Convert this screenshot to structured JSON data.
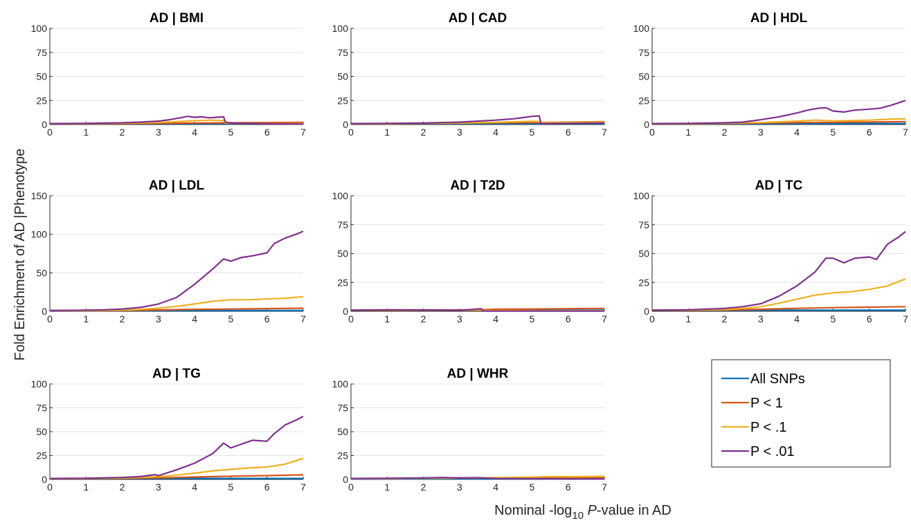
{
  "figure": {
    "ylabel": "Fold Enrichment of AD |Phenotype",
    "xlabel_prefix": "Nominal -log",
    "xlabel_sub": "10",
    "xlabel_p": "P",
    "xlabel_suffix": "-value in AD"
  },
  "legend": {
    "entries": [
      {
        "label": "All SNPs",
        "color": "#0072BD"
      },
      {
        "label": "P < 1",
        "color": "#D95319"
      },
      {
        "label": "P < .1",
        "color": "#EDB120"
      },
      {
        "label": "P < .01",
        "color": "#7E2F8E"
      }
    ]
  },
  "chart_data": [
    {
      "type": "line",
      "title": "AD | BMI",
      "xlim": [
        0,
        7
      ],
      "ylim": [
        0,
        100
      ],
      "xticks": [
        0,
        1,
        2,
        3,
        4,
        5,
        6,
        7
      ],
      "yticks": [
        0,
        25,
        50,
        75,
        100
      ],
      "grid": "horizontal",
      "series": [
        {
          "name": "All SNPs",
          "x": [
            0,
            7
          ],
          "y": [
            1,
            1
          ]
        },
        {
          "name": "P < 1",
          "x": [
            0,
            1,
            2,
            3,
            4,
            5,
            6,
            7
          ],
          "y": [
            1,
            1,
            1,
            1.3,
            1.6,
            1.8,
            2,
            2.2
          ]
        },
        {
          "name": "P < .1",
          "x": [
            0,
            1,
            2,
            3,
            3.5,
            4,
            4.5,
            4.8,
            4.85,
            5,
            6,
            7
          ],
          "y": [
            1,
            1,
            1.3,
            2,
            3,
            4,
            4.5,
            4,
            1.5,
            1.3,
            1,
            1
          ]
        },
        {
          "name": "P < .01",
          "x": [
            0,
            1,
            2,
            2.5,
            3,
            3.3,
            3.6,
            3.8,
            4,
            4.2,
            4.4,
            4.6,
            4.8,
            4.85,
            5,
            6,
            7
          ],
          "y": [
            1,
            1.2,
            1.8,
            2.5,
            3.5,
            5,
            7,
            8.5,
            7.5,
            8,
            7,
            7.5,
            8,
            2.5,
            1.5,
            0.8,
            0.5
          ]
        }
      ]
    },
    {
      "type": "line",
      "title": "AD | CAD",
      "xlim": [
        0,
        7
      ],
      "ylim": [
        0,
        100
      ],
      "xticks": [
        0,
        1,
        2,
        3,
        4,
        5,
        6,
        7
      ],
      "yticks": [
        0,
        25,
        50,
        75,
        100
      ],
      "grid": "horizontal",
      "series": [
        {
          "name": "All SNPs",
          "x": [
            0,
            7
          ],
          "y": [
            1,
            1
          ]
        },
        {
          "name": "P < 1",
          "x": [
            0,
            1,
            2,
            3,
            4,
            5,
            6,
            7
          ],
          "y": [
            1,
            1,
            1.2,
            1.5,
            1.8,
            2,
            2.5,
            3
          ]
        },
        {
          "name": "P < .1",
          "x": [
            0,
            1,
            2,
            3,
            4,
            4.6,
            5,
            5.2,
            5.25,
            6,
            7
          ],
          "y": [
            1,
            1,
            1.3,
            1.6,
            2.2,
            3,
            3.3,
            3.2,
            2,
            2.2,
            2.5
          ]
        },
        {
          "name": "P < .01",
          "x": [
            0,
            1,
            2,
            2.5,
            3,
            3.5,
            4,
            4.5,
            4.8,
            5,
            5.2,
            5.25,
            6,
            7
          ],
          "y": [
            1,
            1.2,
            1.5,
            2,
            2.5,
            3.5,
            4.5,
            6,
            7.5,
            8.5,
            9,
            1,
            1.2,
            1.5
          ]
        }
      ]
    },
    {
      "type": "line",
      "title": "AD | HDL",
      "xlim": [
        0,
        7
      ],
      "ylim": [
        0,
        100
      ],
      "xticks": [
        0,
        1,
        2,
        3,
        4,
        5,
        6,
        7
      ],
      "yticks": [
        0,
        25,
        50,
        75,
        100
      ],
      "grid": "horizontal",
      "series": [
        {
          "name": "All SNPs",
          "x": [
            0,
            7
          ],
          "y": [
            1,
            1
          ]
        },
        {
          "name": "P < 1",
          "x": [
            0,
            1,
            2,
            3,
            4,
            5,
            6,
            7
          ],
          "y": [
            1,
            1,
            1.2,
            1.6,
            2,
            2.3,
            2.6,
            3
          ]
        },
        {
          "name": "P < .1",
          "x": [
            0,
            1,
            2,
            3,
            4,
            4.5,
            5,
            5.5,
            6,
            6.5,
            7
          ],
          "y": [
            1,
            1,
            1.3,
            2,
            3.5,
            4.5,
            3.8,
            4,
            4.5,
            5.5,
            6
          ]
        },
        {
          "name": "P < .01",
          "x": [
            0,
            1,
            2,
            2.5,
            3,
            3.5,
            4,
            4.3,
            4.6,
            4.8,
            5,
            5.3,
            5.6,
            6,
            6.3,
            6.6,
            7
          ],
          "y": [
            1,
            1.2,
            1.8,
            2.5,
            5,
            8,
            12,
            15,
            17,
            17.5,
            14,
            13,
            15,
            16,
            17,
            20,
            25
          ]
        }
      ]
    },
    {
      "type": "line",
      "title": "AD | LDL",
      "xlim": [
        0,
        7
      ],
      "ylim": [
        0,
        150
      ],
      "xticks": [
        0,
        1,
        2,
        3,
        4,
        5,
        6,
        7
      ],
      "yticks": [
        0,
        50,
        100,
        150
      ],
      "grid": "horizontal",
      "series": [
        {
          "name": "All SNPs",
          "x": [
            0,
            7
          ],
          "y": [
            1,
            1
          ]
        },
        {
          "name": "P < 1",
          "x": [
            0,
            1,
            2,
            3,
            4,
            5,
            6,
            7
          ],
          "y": [
            1,
            1,
            1.2,
            1.8,
            2.5,
            3,
            3.5,
            4
          ]
        },
        {
          "name": "P < .1",
          "x": [
            0,
            1,
            2,
            2.5,
            3,
            3.5,
            4,
            4.5,
            5,
            5.5,
            6,
            6.5,
            7
          ],
          "y": [
            1,
            1,
            1.5,
            2.5,
            4,
            6.5,
            9.5,
            13,
            15,
            15,
            16,
            17,
            19
          ]
        },
        {
          "name": "P < .01",
          "x": [
            0,
            1,
            1.5,
            2,
            2.5,
            3,
            3.5,
            4,
            4.5,
            4.8,
            5,
            5.3,
            5.6,
            6,
            6.2,
            6.5,
            6.8,
            7
          ],
          "y": [
            1,
            1.5,
            2,
            3,
            5,
            9.5,
            18,
            35,
            55,
            68,
            65,
            70,
            72,
            76,
            88,
            95,
            100,
            104
          ]
        }
      ]
    },
    {
      "type": "line",
      "title": "AD | T2D",
      "xlim": [
        0,
        7
      ],
      "ylim": [
        0,
        100
      ],
      "xticks": [
        0,
        1,
        2,
        3,
        4,
        5,
        6,
        7
      ],
      "yticks": [
        0,
        25,
        50,
        75,
        100
      ],
      "grid": "horizontal",
      "series": [
        {
          "name": "All SNPs",
          "x": [
            0,
            7
          ],
          "y": [
            1,
            1
          ]
        },
        {
          "name": "P < 1",
          "x": [
            0,
            1,
            2,
            3,
            3.5,
            3.7,
            4,
            5,
            6,
            7
          ],
          "y": [
            1,
            1,
            1.2,
            1.2,
            1.2,
            1.5,
            1.8,
            2,
            2.3,
            2.5
          ]
        },
        {
          "name": "P < .1",
          "x": [
            0,
            1,
            2,
            3,
            3.6,
            3.65,
            4,
            5,
            6,
            7
          ],
          "y": [
            1,
            1,
            1,
            1,
            1,
            0.6,
            0.6,
            0.5,
            0.5,
            0.5
          ]
        },
        {
          "name": "P < .01",
          "x": [
            0,
            1,
            2,
            3,
            3.3,
            3.6,
            3.65,
            4,
            5,
            6,
            7
          ],
          "y": [
            1,
            1.3,
            1.2,
            1,
            1.5,
            2.3,
            0.2,
            0.2,
            0.2,
            0.2,
            0.2
          ]
        }
      ]
    },
    {
      "type": "line",
      "title": "AD | TC",
      "xlim": [
        0,
        7
      ],
      "ylim": [
        0,
        100
      ],
      "xticks": [
        0,
        1,
        2,
        3,
        4,
        5,
        6,
        7
      ],
      "yticks": [
        0,
        25,
        50,
        75,
        100
      ],
      "grid": "horizontal",
      "series": [
        {
          "name": "All SNPs",
          "x": [
            0,
            7
          ],
          "y": [
            1,
            1
          ]
        },
        {
          "name": "P < 1",
          "x": [
            0,
            1,
            2,
            3,
            4,
            5,
            6,
            7
          ],
          "y": [
            1,
            1,
            1.2,
            1.8,
            2.6,
            3.2,
            3.6,
            4
          ]
        },
        {
          "name": "P < .1",
          "x": [
            0,
            1,
            2,
            2.5,
            3,
            3.5,
            4,
            4.5,
            5,
            5.5,
            6,
            6.5,
            7
          ],
          "y": [
            1,
            1,
            1.5,
            2.5,
            4,
            7,
            10.5,
            14,
            16,
            17,
            19,
            22,
            28
          ]
        },
        {
          "name": "P < .01",
          "x": [
            0,
            1,
            2,
            2.5,
            3,
            3.5,
            4,
            4.5,
            4.8,
            5,
            5.3,
            5.6,
            6,
            6.2,
            6.5,
            6.8,
            7
          ],
          "y": [
            1,
            1.3,
            2.5,
            4,
            6.5,
            13,
            22,
            34,
            46,
            46,
            42,
            46,
            47,
            45,
            58,
            64,
            69
          ]
        }
      ]
    },
    {
      "type": "line",
      "title": "AD | TG",
      "xlim": [
        0,
        7
      ],
      "ylim": [
        0,
        100
      ],
      "xticks": [
        0,
        1,
        2,
        3,
        4,
        5,
        6,
        7
      ],
      "yticks": [
        0,
        25,
        50,
        75,
        100
      ],
      "grid": "horizontal",
      "series": [
        {
          "name": "All SNPs",
          "x": [
            0,
            7
          ],
          "y": [
            1,
            1
          ]
        },
        {
          "name": "P < 1",
          "x": [
            0,
            1,
            2,
            3,
            4,
            5,
            6,
            7
          ],
          "y": [
            1,
            1,
            1.2,
            1.6,
            2.5,
            3.3,
            4,
            4.8
          ]
        },
        {
          "name": "P < .1",
          "x": [
            0,
            1,
            2,
            2.5,
            3,
            3.5,
            4,
            4.5,
            5,
            5.5,
            6,
            6.5,
            7
          ],
          "y": [
            1,
            1,
            1.3,
            2,
            3,
            4.5,
            6.5,
            9,
            10.5,
            12,
            13,
            16,
            22
          ]
        },
        {
          "name": "P < .01",
          "x": [
            0,
            1,
            2,
            2.5,
            2.9,
            3,
            3.5,
            4,
            4.5,
            4.8,
            5,
            5.3,
            5.6,
            6,
            6.2,
            6.5,
            6.8,
            7
          ],
          "y": [
            1,
            1.2,
            2,
            3,
            5,
            4,
            10,
            17,
            27,
            38,
            33,
            37,
            41,
            40,
            48,
            57,
            62,
            66
          ]
        }
      ]
    },
    {
      "type": "line",
      "title": "AD | WHR",
      "xlim": [
        0,
        7
      ],
      "ylim": [
        0,
        100
      ],
      "xticks": [
        0,
        1,
        2,
        3,
        4,
        5,
        6,
        7
      ],
      "yticks": [
        0,
        25,
        50,
        75,
        100
      ],
      "grid": "horizontal",
      "series": [
        {
          "name": "All SNPs",
          "x": [
            0,
            7
          ],
          "y": [
            0.5,
            0.5
          ]
        },
        {
          "name": "P < 1",
          "x": [
            0,
            1,
            2,
            3,
            4,
            5,
            6,
            7
          ],
          "y": [
            1,
            1,
            1.2,
            1.3,
            1.5,
            1.8,
            2,
            2.2
          ]
        },
        {
          "name": "P < .1",
          "x": [
            0,
            1,
            2,
            3,
            4,
            5,
            5.5,
            6,
            6.5,
            7
          ],
          "y": [
            1,
            1,
            1.2,
            1.5,
            1.8,
            2.4,
            3,
            2.8,
            3,
            3.2
          ]
        },
        {
          "name": "P < .01",
          "x": [
            0,
            1,
            2,
            2.5,
            3,
            3.5,
            4,
            5,
            6,
            7
          ],
          "y": [
            1,
            1.2,
            1.5,
            2,
            1.5,
            1.8,
            1,
            0.8,
            0.6,
            0.5
          ]
        }
      ]
    }
  ]
}
